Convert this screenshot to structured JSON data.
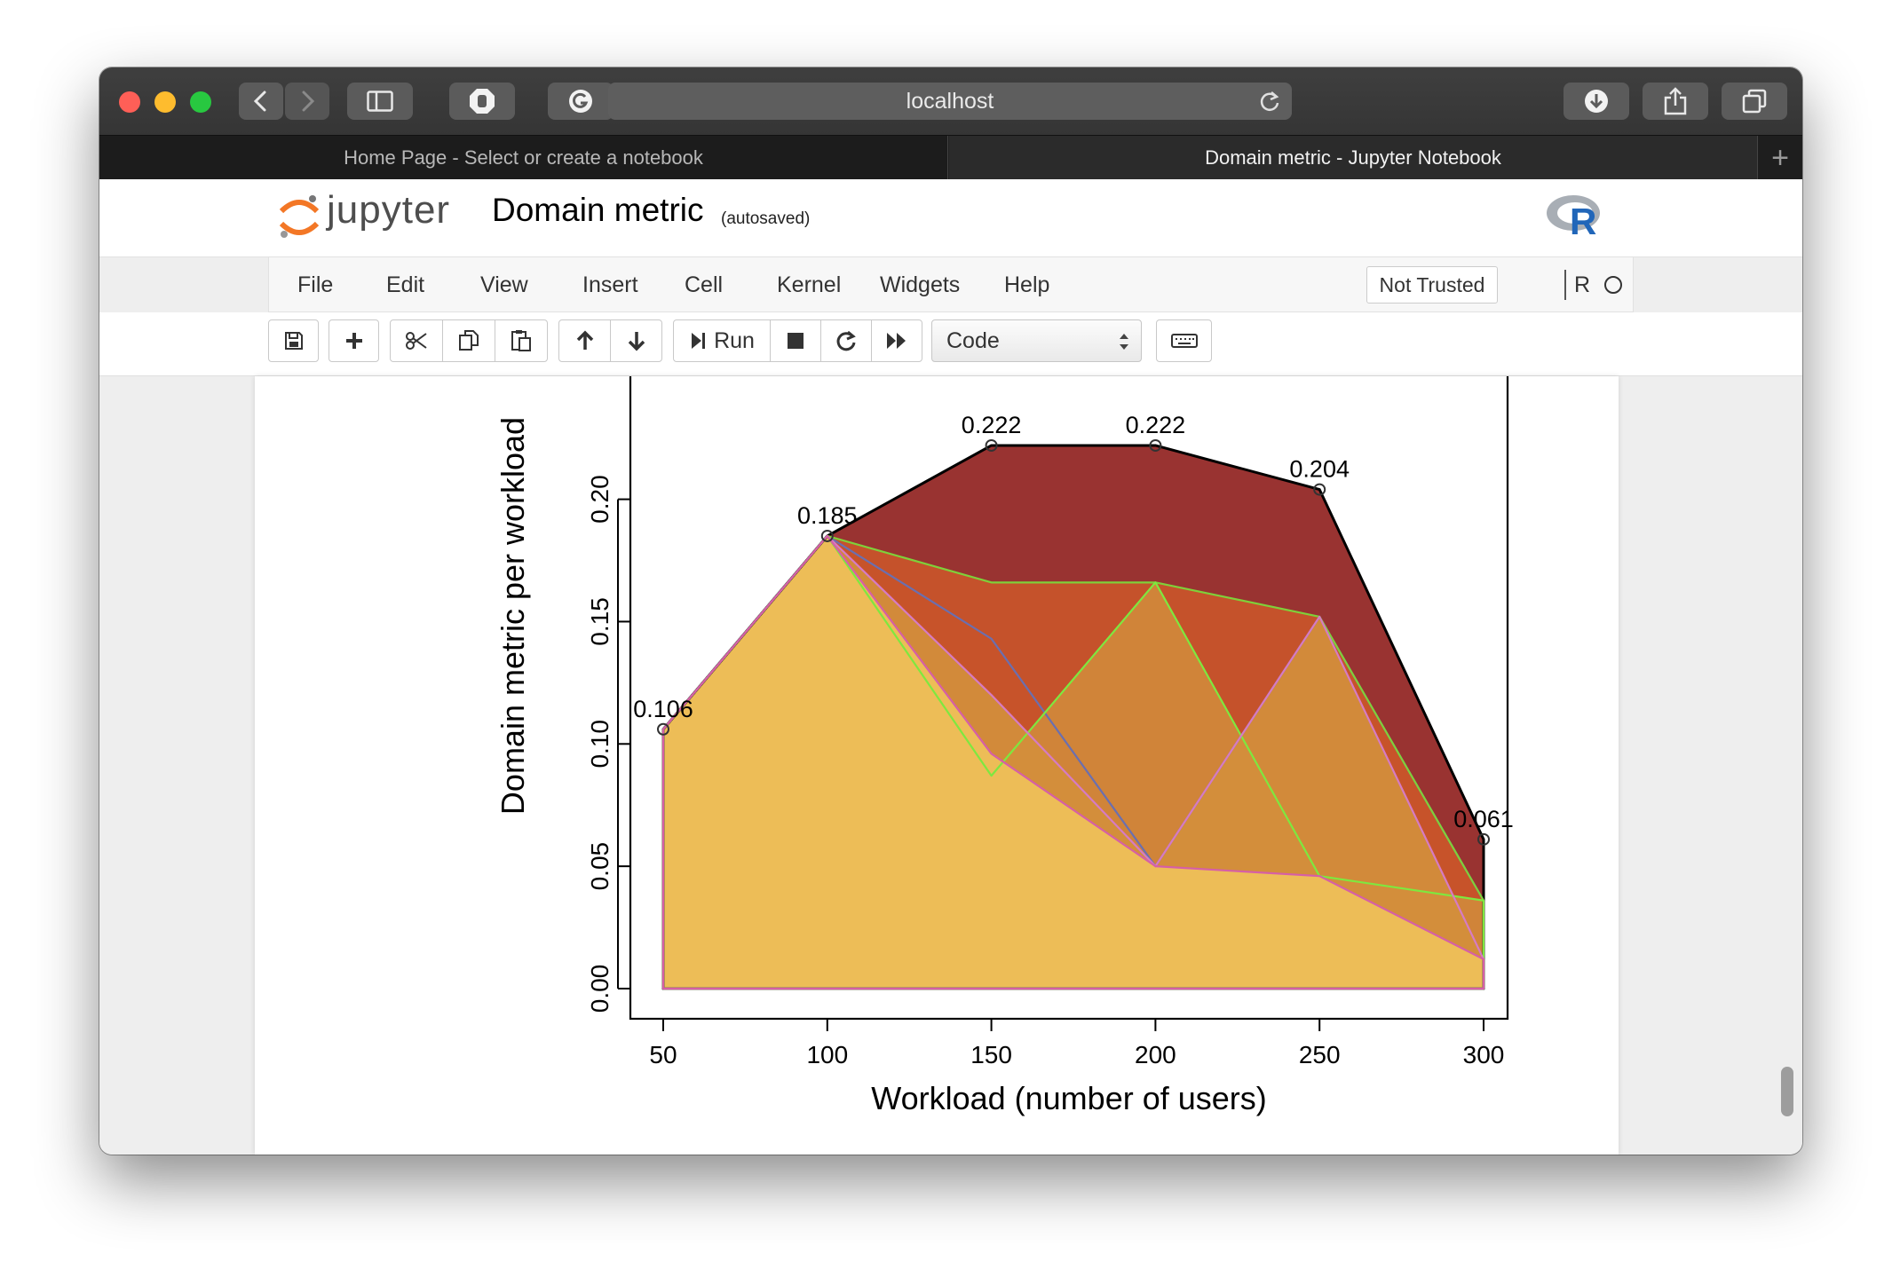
{
  "browser": {
    "url": "localhost",
    "tabs": [
      {
        "label": "Home Page - Select or create a notebook",
        "active": false
      },
      {
        "label": "Domain metric - Jupyter Notebook",
        "active": true
      }
    ],
    "new_tab_label": "+",
    "traffic_light_colors": [
      "#fe5f57",
      "#febc2e",
      "#28c840"
    ]
  },
  "jupyter": {
    "logo_text": "jupyter",
    "notebook_title": "Domain metric",
    "autosave_status": "(autosaved)",
    "kernel_logo": "R",
    "menu": [
      "File",
      "Edit",
      "View",
      "Insert",
      "Cell",
      "Kernel",
      "Widgets",
      "Help"
    ],
    "trust_status": "Not Trusted",
    "kernel_name": "R",
    "toolbar": {
      "run_label": "Run",
      "cell_type": "Code",
      "icons": [
        "save-icon",
        "plus-icon",
        "cut-icon",
        "copy-icon",
        "paste-icon",
        "arrow-up-icon",
        "arrow-down-icon",
        "run-icon",
        "stop-icon",
        "restart-icon",
        "fast-forward-icon",
        "keyboard-icon"
      ]
    }
  },
  "chart_data": {
    "type": "area",
    "xlabel": "Workload (number of users)",
    "ylabel": "Domain metric per workload",
    "x": [
      50,
      100,
      150,
      200,
      250,
      300
    ],
    "x_ticks": [
      "50",
      "100",
      "150",
      "200",
      "250",
      "300"
    ],
    "y_ticks": [
      "0.00",
      "0.05",
      "0.10",
      "0.15",
      "0.20"
    ],
    "y_visible_range": [
      0,
      0.222
    ],
    "series": [
      {
        "values": [
          0.106,
          0.185,
          0.222,
          0.222,
          0.204,
          0.061
        ],
        "fill": "#993331",
        "stroke": "#000000"
      },
      {
        "values": [
          0.106,
          0.185,
          0.143,
          0.05,
          0.152,
          0.036
        ],
        "fill": "#b8442e",
        "stroke": "#6a6fb0"
      },
      {
        "values": [
          0.106,
          0.185,
          0.166,
          0.166,
          0.152,
          0.036
        ],
        "fill": "#c9552a",
        "stroke": "#7fd03a"
      },
      {
        "values": [
          0.106,
          0.185,
          0.087,
          0.166,
          0.046,
          0.036
        ],
        "fill": "#d0893b",
        "stroke": "#7ee83f"
      },
      {
        "values": [
          0.106,
          0.185,
          0.12,
          0.05,
          0.152,
          0.012
        ],
        "fill": "#d38f3c",
        "stroke": "#d67bc3"
      },
      {
        "values": [
          0.106,
          0.185,
          0.096,
          0.05,
          0.046,
          0.012
        ],
        "fill": "#efc15a",
        "stroke": "#d65fa6"
      }
    ],
    "point_labels": [
      "0.106",
      "0.185",
      "0.222",
      "0.222",
      "0.204",
      "0.061"
    ],
    "grid": false,
    "legend": "none"
  }
}
